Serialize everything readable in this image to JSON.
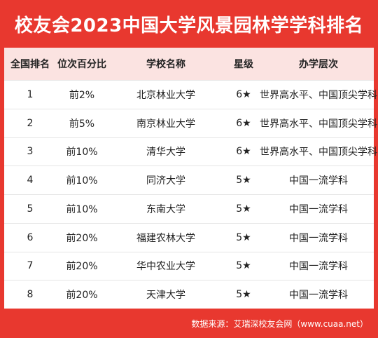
{
  "title": "校友会2023中国大学风景园林学学科排名",
  "headers": [
    "全国排名",
    "位次百分比",
    "学校名称",
    "星级",
    "办学层次"
  ],
  "rows": [
    {
      "rank": "1",
      "percent": "前2%",
      "school": "北京林业大学",
      "stars": "6★",
      "level": "世界高水平、中国顶尖学科"
    },
    {
      "rank": "2",
      "percent": "前5%",
      "school": "南京林业大学",
      "stars": "6★",
      "level": "世界高水平、中国顶尖学科"
    },
    {
      "rank": "3",
      "percent": "前10%",
      "school": "清华大学",
      "stars": "6★",
      "level": "世界高水平、中国顶尖学科"
    },
    {
      "rank": "4",
      "percent": "前10%",
      "school": "同济大学",
      "stars": "5★",
      "level": "中国一流学科"
    },
    {
      "rank": "5",
      "percent": "前10%",
      "school": "东南大学",
      "stars": "5★",
      "level": "中国一流学科"
    },
    {
      "rank": "6",
      "percent": "前20%",
      "school": "福建农林大学",
      "stars": "5★",
      "level": "中国一流学科"
    },
    {
      "rank": "7",
      "percent": "前20%",
      "school": "华中农业大学",
      "stars": "5★",
      "level": "中国一流学科"
    },
    {
      "rank": "8",
      "percent": "前20%",
      "school": "天津大学",
      "stars": "5★",
      "level": "中国一流学科"
    }
  ],
  "source": "数据来源：艾瑞深校友会网（www.cuaa.net）",
  "colors": {
    "background": "#e8382f",
    "header_row": "#fbe3e1"
  }
}
